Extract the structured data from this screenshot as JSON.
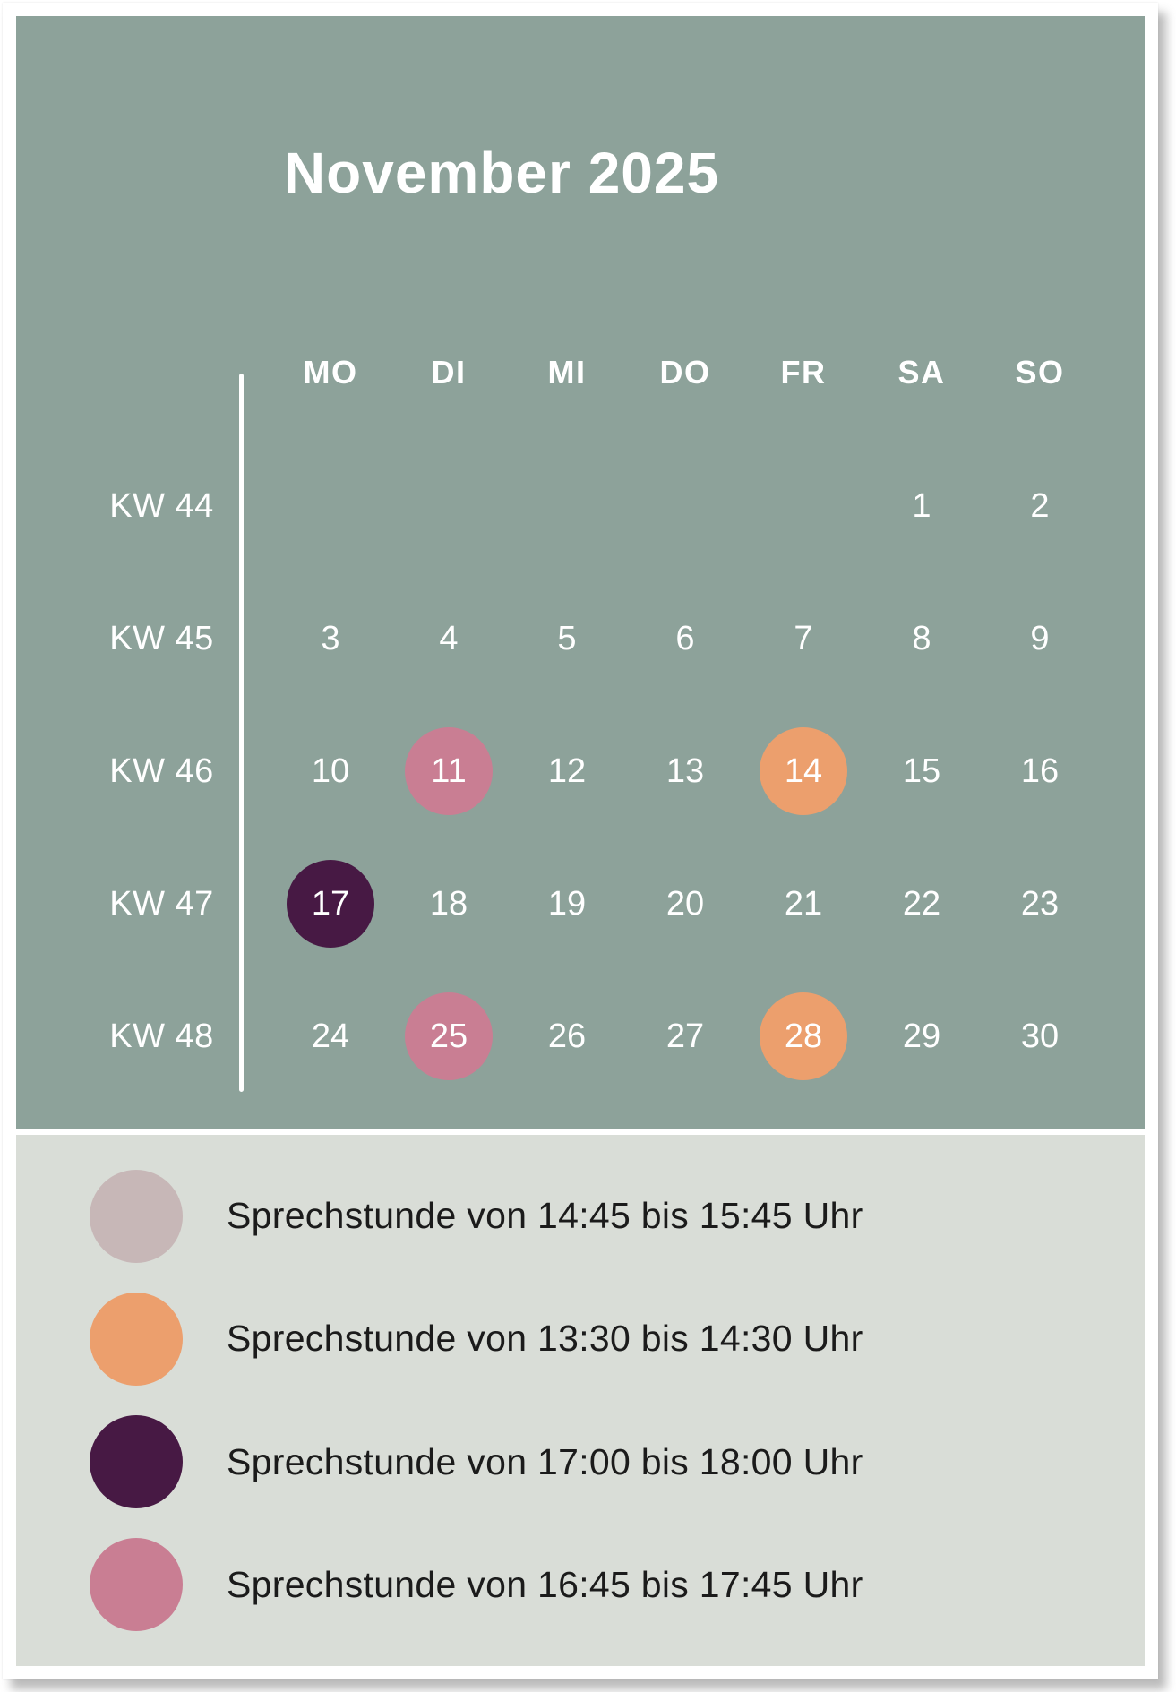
{
  "card": {
    "title": "November 2025"
  },
  "calendar": {
    "day_headers": [
      "MO",
      "DI",
      "MI",
      "DO",
      "FR",
      "SA",
      "SO"
    ],
    "weeks": [
      {
        "label": "KW 44",
        "days": [
          "",
          "",
          "",
          "",
          "",
          "1",
          "2"
        ],
        "events": [
          "",
          "",
          "",
          "",
          "",
          "",
          ""
        ]
      },
      {
        "label": "KW 45",
        "days": [
          "3",
          "4",
          "5",
          "6",
          "7",
          "8",
          "9"
        ],
        "events": [
          "",
          "",
          "",
          "",
          "",
          "",
          ""
        ]
      },
      {
        "label": "KW 46",
        "days": [
          "10",
          "11",
          "12",
          "13",
          "14",
          "15",
          "16"
        ],
        "events": [
          "",
          "pink",
          "",
          "",
          "orange",
          "",
          ""
        ]
      },
      {
        "label": "KW 47",
        "days": [
          "17",
          "18",
          "19",
          "20",
          "21",
          "22",
          "23"
        ],
        "events": [
          "purple",
          "",
          "",
          "",
          "",
          "",
          ""
        ]
      },
      {
        "label": "KW 48",
        "days": [
          "24",
          "25",
          "26",
          "27",
          "28",
          "29",
          "30"
        ],
        "events": [
          "",
          "pink",
          "",
          "",
          "orange",
          "",
          ""
        ]
      }
    ]
  },
  "legend": {
    "items": [
      {
        "color": "gray",
        "hex": "#C7B7B7",
        "label": "Sprechstunde von 14:45 bis 15:45 Uhr"
      },
      {
        "color": "orange",
        "hex": "#EC9F6D",
        "label": "Sprechstunde von 13:30 bis 14:30 Uhr"
      },
      {
        "color": "purple",
        "hex": "#471944",
        "label": "Sprechstunde von 17:00 bis 18:00 Uhr"
      },
      {
        "color": "pink",
        "hex": "#C97E93",
        "label": "Sprechstunde von 16:45 bis 17:45 Uhr"
      }
    ]
  },
  "colors": {
    "calendar_bg": "#8DA29A",
    "legend_bg": "#D9DDD7",
    "text_white": "#FFFFFF",
    "text_dark": "#1B1B1B",
    "event_gray": "#C7B7B7",
    "event_orange": "#EC9F6D",
    "event_purple": "#471944",
    "event_pink": "#C97E93"
  }
}
